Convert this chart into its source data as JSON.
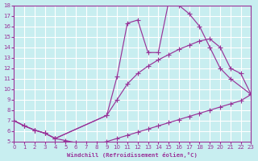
{
  "background_color": "#c8eef0",
  "grid_color": "#ffffff",
  "line_color": "#993399",
  "xlabel": "Windchill (Refroidissement éolien,°C)",
  "xlabel_color": "#993399",
  "tick_color": "#993399",
  "xmin": 0,
  "xmax": 23,
  "ymin": 5,
  "ymax": 18,
  "curves": [
    {
      "x": [
        0,
        1,
        2,
        3,
        4,
        5,
        6,
        7,
        8,
        9,
        10,
        11,
        12,
        13,
        14,
        15,
        16,
        17,
        18,
        19,
        20,
        21,
        22,
        23
      ],
      "y": [
        7.0,
        6.5,
        6.1,
        5.8,
        5.3,
        5.1,
        4.9,
        4.85,
        4.8,
        5.0,
        5.3,
        5.6,
        5.9,
        6.2,
        6.5,
        6.8,
        7.1,
        7.4,
        7.7,
        8.0,
        8.3,
        8.6,
        8.9,
        9.5
      ]
    },
    {
      "x": [
        0,
        1,
        2,
        3,
        4,
        9,
        10,
        11,
        12,
        13,
        14,
        15,
        16,
        17,
        18,
        19,
        20,
        21,
        23
      ],
      "y": [
        7.0,
        6.5,
        6.1,
        5.8,
        5.3,
        7.5,
        11.2,
        16.3,
        16.6,
        13.5,
        13.5,
        18.3,
        18.0,
        17.2,
        16.0,
        14.0,
        12.0,
        11.0,
        9.5
      ]
    },
    {
      "x": [
        0,
        1,
        2,
        3,
        4,
        9,
        10,
        11,
        12,
        13,
        14,
        15,
        16,
        17,
        18,
        19,
        20,
        21,
        22,
        23
      ],
      "y": [
        7.0,
        6.5,
        6.1,
        5.8,
        5.3,
        7.5,
        9.0,
        10.5,
        11.5,
        12.2,
        12.8,
        13.3,
        13.8,
        14.2,
        14.6,
        14.8,
        14.0,
        12.0,
        11.5,
        9.5
      ]
    }
  ]
}
